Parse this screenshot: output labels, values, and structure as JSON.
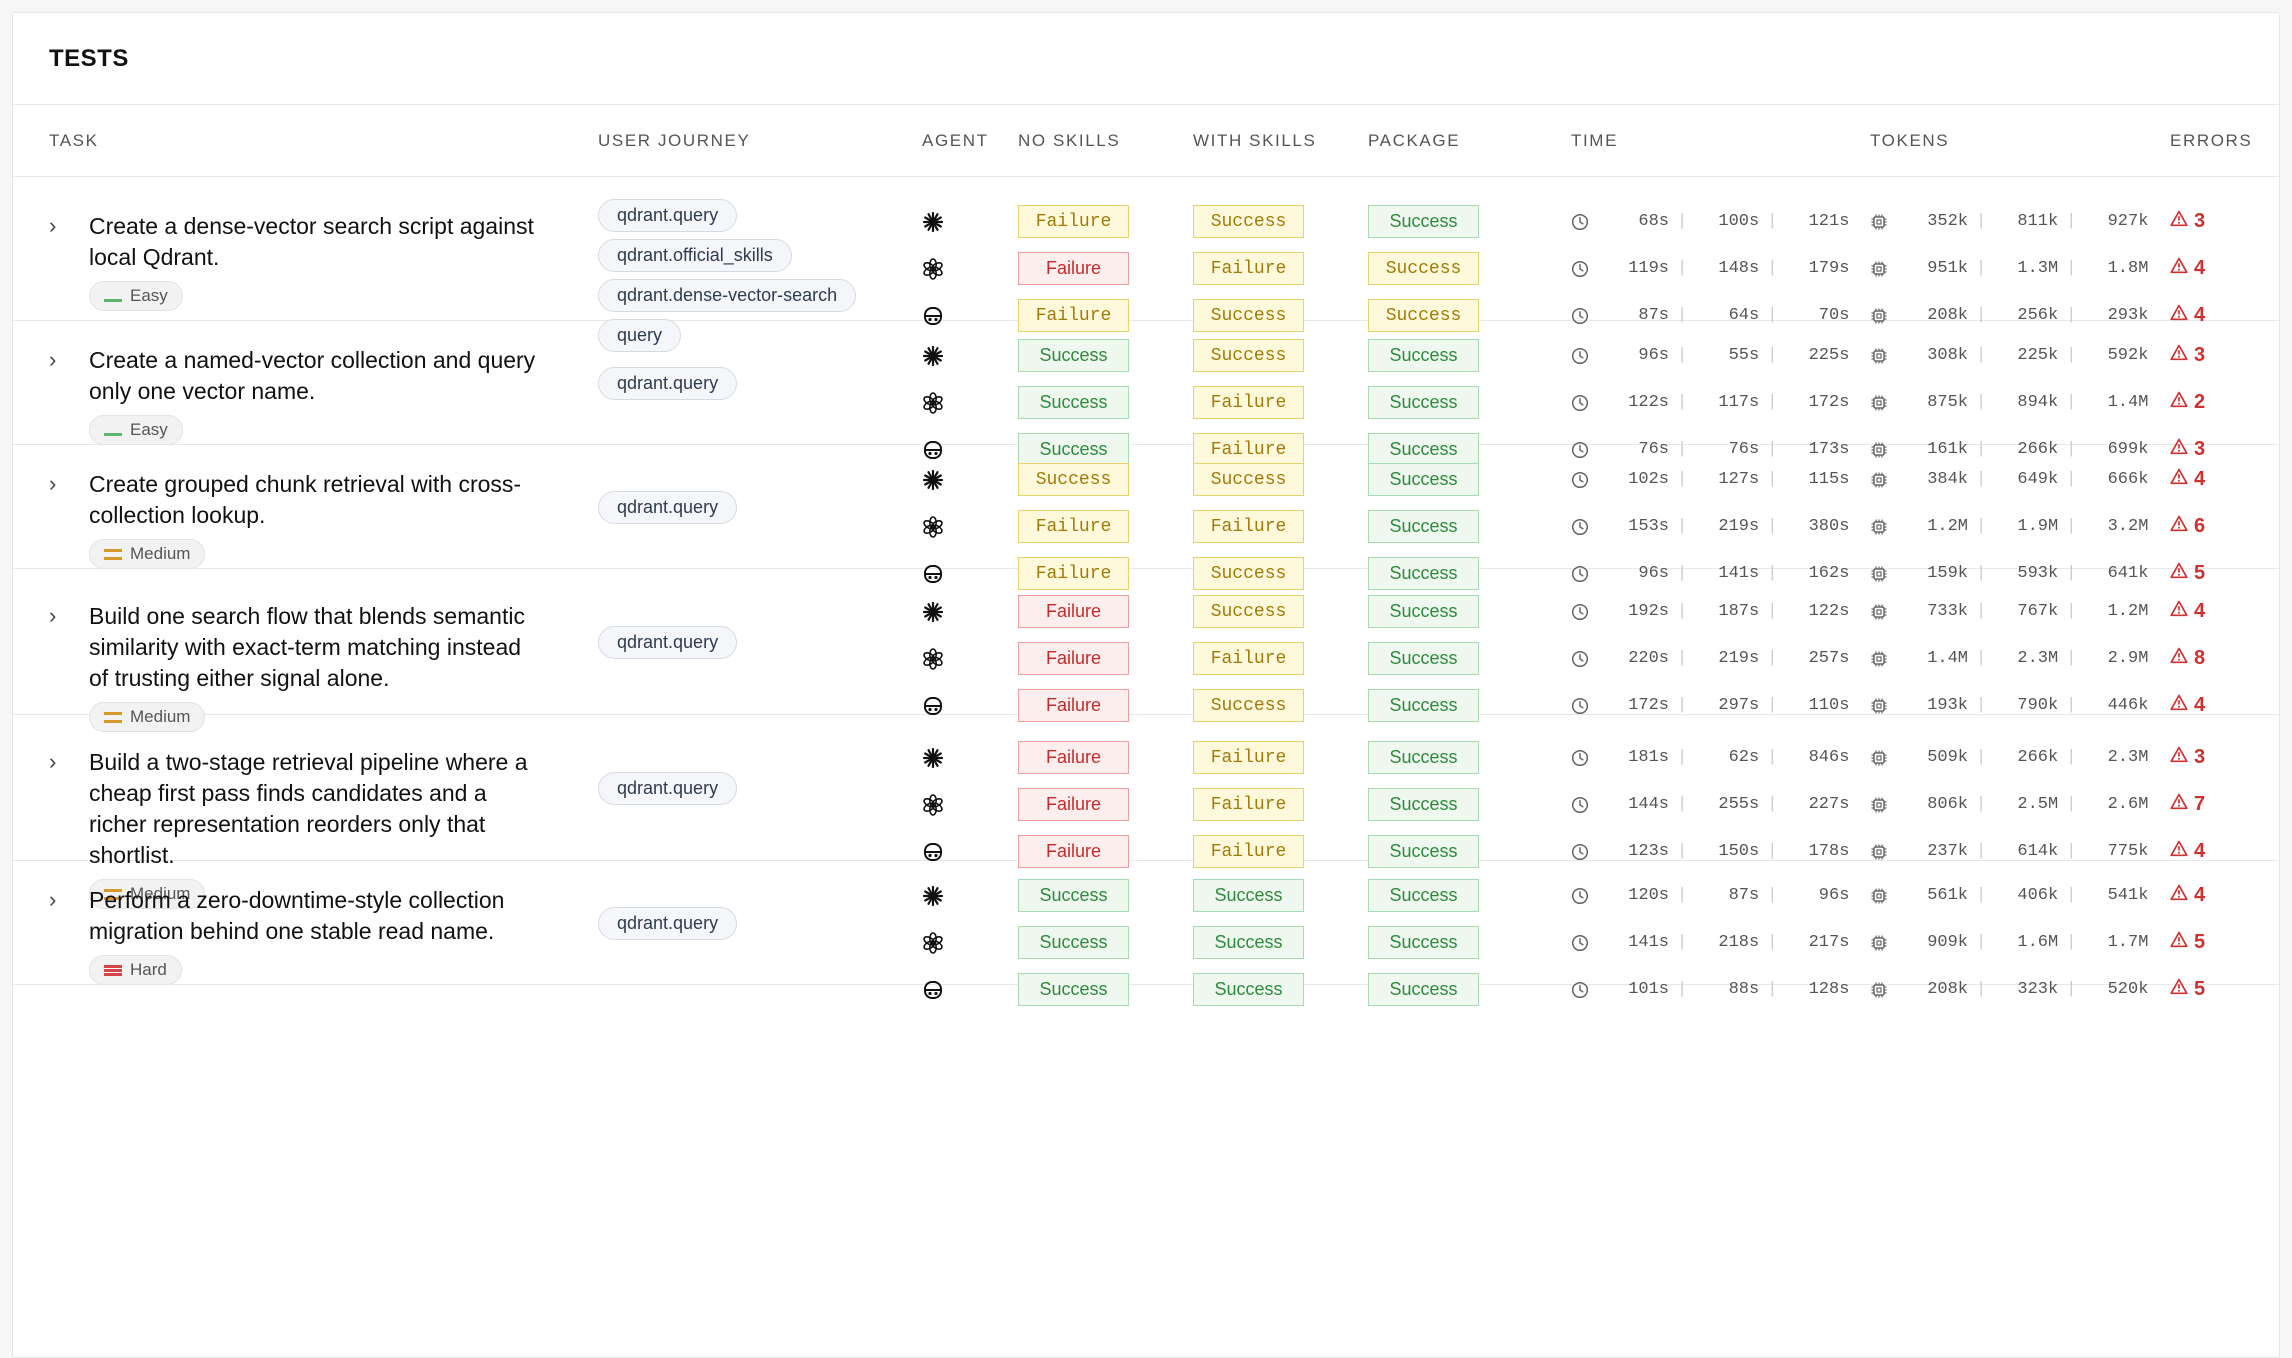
{
  "panel": {
    "title": "TESTS"
  },
  "columns": [
    "TASK",
    "USER JOURNEY",
    "AGENT",
    "NO SKILLS",
    "WITH SKILLS",
    "PACKAGE",
    "TIME",
    "TOKENS",
    "ERRORS"
  ],
  "status_colors": {
    "success": "#2f8a3e",
    "failure": "#c42c2c",
    "warning": "#a27a08",
    "error": "#cf3030"
  },
  "agents": [
    "sparkle-icon",
    "openai-icon",
    "robot-icon"
  ],
  "rows": [
    {
      "task": "Create a dense-vector search script against local Qdrant.",
      "difficulty": "Easy",
      "journey": [
        "qdrant.query",
        "qdrant.official_skills",
        "qdrant.dense-vector-search",
        "query"
      ],
      "results": [
        {
          "no_skills": "Failure",
          "with_skills": "Success",
          "package": "Success",
          "time": [
            "68s",
            "100s",
            "121s"
          ],
          "tokens": [
            "352k",
            "811k",
            "927k"
          ],
          "errors": "3"
        },
        {
          "no_skills": "Failure",
          "with_skills": "Failure",
          "package": "Success",
          "time": [
            "119s",
            "148s",
            "179s"
          ],
          "tokens": [
            "951k",
            "1.3M",
            "1.8M"
          ],
          "errors": "4"
        },
        {
          "no_skills": "Failure",
          "with_skills": "Success",
          "package": "Success",
          "time": [
            "87s",
            "64s",
            "70s"
          ],
          "tokens": [
            "208k",
            "256k",
            "293k"
          ],
          "errors": "4"
        }
      ]
    },
    {
      "task": "Create a named-vector collection and query only one vector name.",
      "difficulty": "Easy",
      "journey": [
        "qdrant.query"
      ],
      "results": [
        {
          "no_skills": "Success",
          "with_skills": "Success",
          "package": "Success",
          "time": [
            "96s",
            "55s",
            "225s"
          ],
          "tokens": [
            "308k",
            "225k",
            "592k"
          ],
          "errors": "3"
        },
        {
          "no_skills": "Success",
          "with_skills": "Failure",
          "package": "Success",
          "time": [
            "122s",
            "117s",
            "172s"
          ],
          "tokens": [
            "875k",
            "894k",
            "1.4M"
          ],
          "errors": "2"
        },
        {
          "no_skills": "Success",
          "with_skills": "Failure",
          "package": "Success",
          "time": [
            "76s",
            "76s",
            "173s"
          ],
          "tokens": [
            "161k",
            "266k",
            "699k"
          ],
          "errors": "3"
        }
      ]
    },
    {
      "task": "Create grouped chunk retrieval with cross-collection lookup.",
      "difficulty": "Medium",
      "journey": [
        "qdrant.query"
      ],
      "results": [
        {
          "no_skills": "Success",
          "with_skills": "Success",
          "package": "Success",
          "time": [
            "102s",
            "127s",
            "115s"
          ],
          "tokens": [
            "384k",
            "649k",
            "666k"
          ],
          "errors": "4"
        },
        {
          "no_skills": "Failure",
          "with_skills": "Failure",
          "package": "Success",
          "time": [
            "153s",
            "219s",
            "380s"
          ],
          "tokens": [
            "1.2M",
            "1.9M",
            "3.2M"
          ],
          "errors": "6"
        },
        {
          "no_skills": "Failure",
          "with_skills": "Success",
          "package": "Success",
          "time": [
            "96s",
            "141s",
            "162s"
          ],
          "tokens": [
            "159k",
            "593k",
            "641k"
          ],
          "errors": "5"
        }
      ]
    },
    {
      "task": "Build one search flow that blends semantic similarity with exact-term matching instead of trusting either signal alone.",
      "difficulty": "Medium",
      "journey": [
        "qdrant.query"
      ],
      "results": [
        {
          "no_skills": "Failure",
          "with_skills": "Success",
          "package": "Success",
          "time": [
            "192s",
            "187s",
            "122s"
          ],
          "tokens": [
            "733k",
            "767k",
            "1.2M"
          ],
          "errors": "4"
        },
        {
          "no_skills": "Failure",
          "with_skills": "Failure",
          "package": "Success",
          "time": [
            "220s",
            "219s",
            "257s"
          ],
          "tokens": [
            "1.4M",
            "2.3M",
            "2.9M"
          ],
          "errors": "8"
        },
        {
          "no_skills": "Failure",
          "with_skills": "Success",
          "package": "Success",
          "time": [
            "172s",
            "297s",
            "110s"
          ],
          "tokens": [
            "193k",
            "790k",
            "446k"
          ],
          "errors": "4"
        }
      ]
    },
    {
      "task": "Build a two-stage retrieval pipeline where a cheap first pass finds candidates and a richer representation reorders only that shortlist.",
      "difficulty": "Medium",
      "journey": [
        "qdrant.query"
      ],
      "results": [
        {
          "no_skills": "Failure",
          "with_skills": "Failure",
          "package": "Success",
          "time": [
            "181s",
            "62s",
            "846s"
          ],
          "tokens": [
            "509k",
            "266k",
            "2.3M"
          ],
          "errors": "3"
        },
        {
          "no_skills": "Failure",
          "with_skills": "Failure",
          "package": "Success",
          "time": [
            "144s",
            "255s",
            "227s"
          ],
          "tokens": [
            "806k",
            "2.5M",
            "2.6M"
          ],
          "errors": "7"
        },
        {
          "no_skills": "Failure",
          "with_skills": "Failure",
          "package": "Success",
          "time": [
            "123s",
            "150s",
            "178s"
          ],
          "tokens": [
            "237k",
            "614k",
            "775k"
          ],
          "errors": "4"
        }
      ]
    },
    {
      "task": "Perform a zero-downtime-style collection migration behind one stable read name.",
      "difficulty": "Hard",
      "journey": [
        "qdrant.query"
      ],
      "results": [
        {
          "no_skills": "Success",
          "with_skills": "Success",
          "package": "Success",
          "time": [
            "120s",
            "87s",
            "96s"
          ],
          "tokens": [
            "561k",
            "406k",
            "541k"
          ],
          "errors": "4"
        },
        {
          "no_skills": "Success",
          "with_skills": "Success",
          "package": "Success",
          "time": [
            "141s",
            "218s",
            "217s"
          ],
          "tokens": [
            "909k",
            "1.6M",
            "1.7M"
          ],
          "errors": "5"
        },
        {
          "no_skills": "Success",
          "with_skills": "Success",
          "package": "Success",
          "time": [
            "101s",
            "88s",
            "128s"
          ],
          "tokens": [
            "208k",
            "323k",
            "520k"
          ],
          "errors": "5"
        }
      ]
    }
  ]
}
